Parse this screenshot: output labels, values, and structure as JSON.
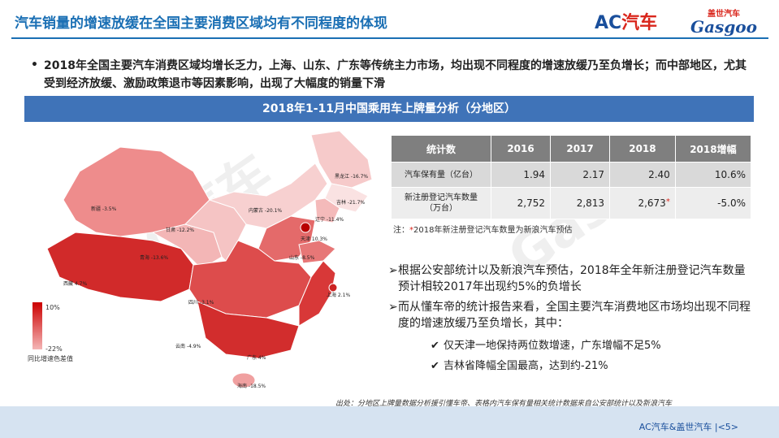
{
  "header": {
    "title": "汽车销量的增速放缓在全国主要消费区域均有不同程度的体现",
    "logo_ac_a": "AC",
    "logo_ac_b": "汽车",
    "logo_gasgoo_cn": "盖世汽车",
    "logo_gasgoo_en": "Gasgoo"
  },
  "summary": {
    "bullet": "•",
    "text": "2018年全国主要汽车消费区域均增长乏力，上海、山东、广东等传统主力市场，均出现不同程度的增速放缓乃至负增长；而中部地区，尤其受到经济放缓、激励政策退市等因素影响，出现了大幅度的销量下滑"
  },
  "banner": "2018年1-11月中国乘用车上牌量分析（分地区）",
  "map": {
    "labels": [
      {
        "name": "新疆",
        "text": "新疆 -3.5%"
      },
      {
        "name": "西藏",
        "text": "西藏 4.7%"
      },
      {
        "name": "青海",
        "text": "青海 -13.6%"
      },
      {
        "name": "甘肃",
        "text": "甘肃 -12.2%"
      },
      {
        "name": "内蒙古",
        "text": "内蒙古 -20.1%"
      },
      {
        "name": "黑龙江",
        "text": "黑龙江 -16.7%"
      },
      {
        "name": "吉林",
        "text": "吉林 -21.7%"
      },
      {
        "name": "辽宁",
        "text": "辽宁 -11.4%"
      },
      {
        "name": "天津",
        "text": "天津 10.3%"
      },
      {
        "name": "山东",
        "text": "山东 -8.5%"
      },
      {
        "name": "四川",
        "text": "四川 -3.1%"
      },
      {
        "name": "上海",
        "text": "上海 2.1%"
      },
      {
        "name": "云南",
        "text": "云南 -4.9%"
      },
      {
        "name": "广东",
        "text": "广东 4%"
      },
      {
        "name": "海南",
        "text": "海南 -18.5%"
      }
    ],
    "legend_max": "10%",
    "legend_min": "-22%",
    "legend_title": "同比增速色差值"
  },
  "table": {
    "headers": [
      "统计数",
      "2016",
      "2017",
      "2018",
      "2018增幅"
    ],
    "rows": [
      {
        "label": "汽车保有量（亿台）",
        "values": [
          "1.94",
          "2.17",
          "2.40",
          "10.6%"
        ]
      },
      {
        "label_a": "新注册登记汽车数量",
        "label_b": "（万台）",
        "values": [
          "2,752",
          "2,813",
          "2,673",
          "-5.0%"
        ],
        "asterisk": "*"
      }
    ]
  },
  "note": {
    "prefix": "注：",
    "asterisk": "*",
    "text": "2018年新注册登记汽车数量为新浪汽车预估"
  },
  "points": [
    {
      "marker": "➢",
      "text": "根据公安部统计以及新浪汽车预估，2018年全年新注册登记汽车数量预计相较2017年出现约5%的负增长"
    },
    {
      "marker": "➢",
      "text": "而从懂车帝的统计报告来看，全国主要汽车消费地区市场均出现不同程度的增速放缓乃至负增长，其中："
    }
  ],
  "subpoints": [
    {
      "marker": "✔",
      "text": "仅天津一地保持两位数增速，广东增幅不足5%"
    },
    {
      "marker": "✔",
      "text": "吉林省降幅全国最高，达到约-21%"
    }
  ],
  "source": "出处：分地区上牌量数据分析援引懂车帝、表格内汽车保有量相关统计数据来自公安部统计以及新浪汽车",
  "footer": {
    "brand": "AC汽车&盖世汽车",
    "separator": "|",
    "page": "<5>"
  },
  "colors": {
    "accent": "#1a6fb4",
    "banner": "#3f73b8",
    "red": "#d9261c"
  }
}
